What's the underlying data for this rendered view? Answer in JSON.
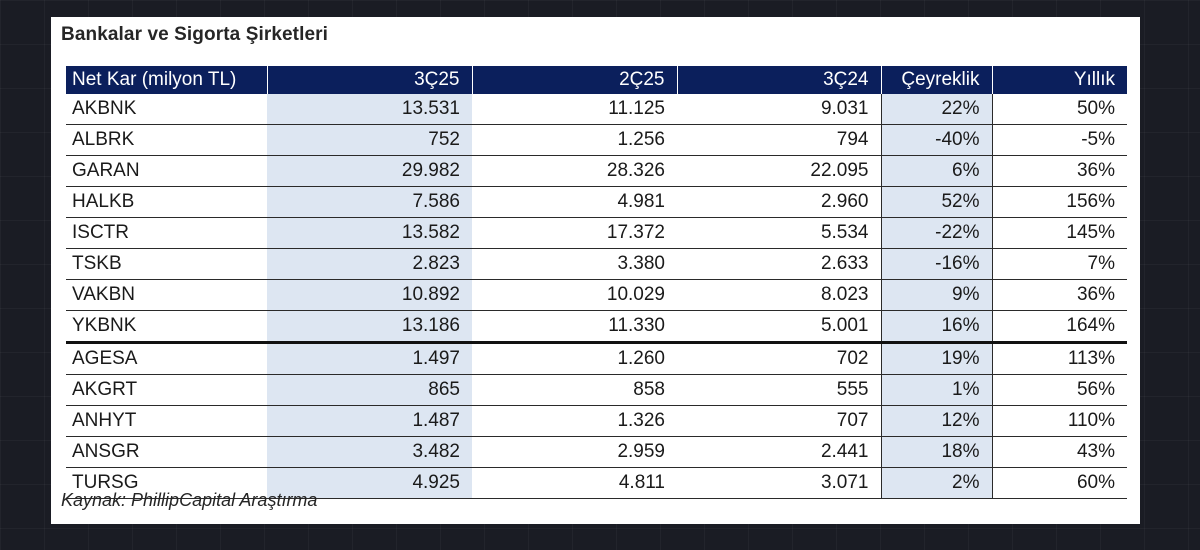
{
  "title": "Bankalar ve Sigorta Şirketleri",
  "columns": [
    "Net Kar (milyon TL)",
    "3Ç25",
    "2Ç25",
    "3Ç24",
    "Çeyreklik",
    "Yıllık"
  ],
  "rows": [
    [
      "AKBNK",
      "13.531",
      "11.125",
      "9.031",
      "22%",
      "50%"
    ],
    [
      "ALBRK",
      "752",
      "1.256",
      "794",
      "-40%",
      "-5%"
    ],
    [
      "GARAN",
      "29.982",
      "28.326",
      "22.095",
      "6%",
      "36%"
    ],
    [
      "HALKB",
      "7.586",
      "4.981",
      "2.960",
      "52%",
      "156%"
    ],
    [
      "ISCTR",
      "13.582",
      "17.372",
      "5.534",
      "-22%",
      "145%"
    ],
    [
      "TSKB",
      "2.823",
      "3.380",
      "2.633",
      "-16%",
      "7%"
    ],
    [
      "VAKBN",
      "10.892",
      "10.029",
      "8.023",
      "9%",
      "36%"
    ],
    [
      "YKBNK",
      "13.186",
      "11.330",
      "5.001",
      "16%",
      "164%"
    ],
    [
      "AGESA",
      "1.497",
      "1.260",
      "702",
      "19%",
      "113%"
    ],
    [
      "AKGRT",
      "865",
      "858",
      "555",
      "1%",
      "56%"
    ],
    [
      "ANHYT",
      "1.487",
      "1.326",
      "707",
      "12%",
      "110%"
    ],
    [
      "ANSGR",
      "3.482",
      "2.959",
      "2.441",
      "18%",
      "43%"
    ],
    [
      "TURSG",
      "4.925",
      "4.811",
      "3.071",
      "2%",
      "60%"
    ]
  ],
  "source": "Kaynak: PhillipCapital Araştırma",
  "colors": {
    "header_bg": "#0b1f5c",
    "highlight_bg": "#dde6f2",
    "page_bg": "#1a1c24"
  }
}
